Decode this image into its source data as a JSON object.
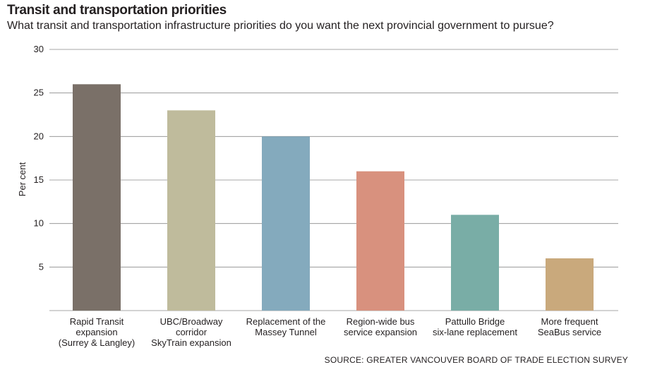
{
  "header": {
    "title": "Transit and transportation priorities",
    "subtitle": "What transit and transportation infrastructure priorities do you want the next provincial government to pursue?"
  },
  "source": "SOURCE: GREATER VANCOUVER BOARD OF TRADE ELECTION SURVEY",
  "chart_data": {
    "type": "bar",
    "title": "Transit and transportation priorities",
    "subtitle": "What transit and transportation infrastructure priorities do you want the next provincial government to pursue?",
    "xlabel": "",
    "ylabel": "Per cent",
    "ylim": [
      0,
      30
    ],
    "yticks": [
      5,
      10,
      15,
      20,
      25,
      30
    ],
    "grid": true,
    "categories": [
      [
        "Rapid Transit",
        "expansion",
        "(Surrey & Langley)"
      ],
      [
        "UBC/Broadway",
        "corridor",
        "SkyTrain expansion"
      ],
      [
        "Replacement of the",
        "Massey Tunnel"
      ],
      [
        "Region-wide bus",
        "service expansion"
      ],
      [
        "Pattullo Bridge",
        "six-lane replacement"
      ],
      [
        "More frequent",
        "SeaBus service"
      ]
    ],
    "values": [
      26,
      23,
      20,
      16,
      11,
      6
    ],
    "colors": [
      "#7a7068",
      "#bfbb9c",
      "#84aabd",
      "#d8917e",
      "#79ada6",
      "#c9a97c"
    ]
  }
}
